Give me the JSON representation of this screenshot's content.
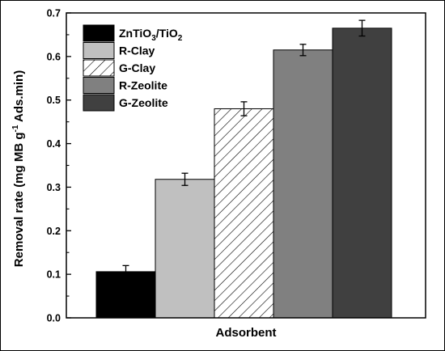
{
  "chart_data": {
    "type": "bar",
    "xlabel": "Adsorbent",
    "ylabel": "Removal rate (mg MB g",
    "ylabel_sup": "-1",
    "ylabel_end": " Ads.min)",
    "ylim": [
      0.0,
      0.7
    ],
    "yticks": [
      "0.0",
      "0.1",
      "0.2",
      "0.3",
      "0.4",
      "0.5",
      "0.6",
      "0.7"
    ],
    "grid": false,
    "legend_position": "top-left",
    "series": [
      {
        "name": "ZnTiO3/TiO2",
        "value": 0.106,
        "error": 0.014,
        "fill": "#000000",
        "pattern": "solid"
      },
      {
        "name": "R-Clay",
        "value": 0.318,
        "error": 0.014,
        "fill": "#c0c0c0",
        "pattern": "solid"
      },
      {
        "name": "G-Clay",
        "value": 0.48,
        "error": 0.016,
        "fill": "#ffffff",
        "pattern": "hatch"
      },
      {
        "name": "R-Zeolite",
        "value": 0.615,
        "error": 0.013,
        "fill": "#808080",
        "pattern": "solid"
      },
      {
        "name": "G-Zeolite",
        "value": 0.665,
        "error": 0.018,
        "fill": "#404040",
        "pattern": "solid"
      }
    ],
    "legend_first": {
      "main": "ZnTiO",
      "sub1": "3",
      "mid": "/TiO",
      "sub2": "2"
    }
  }
}
